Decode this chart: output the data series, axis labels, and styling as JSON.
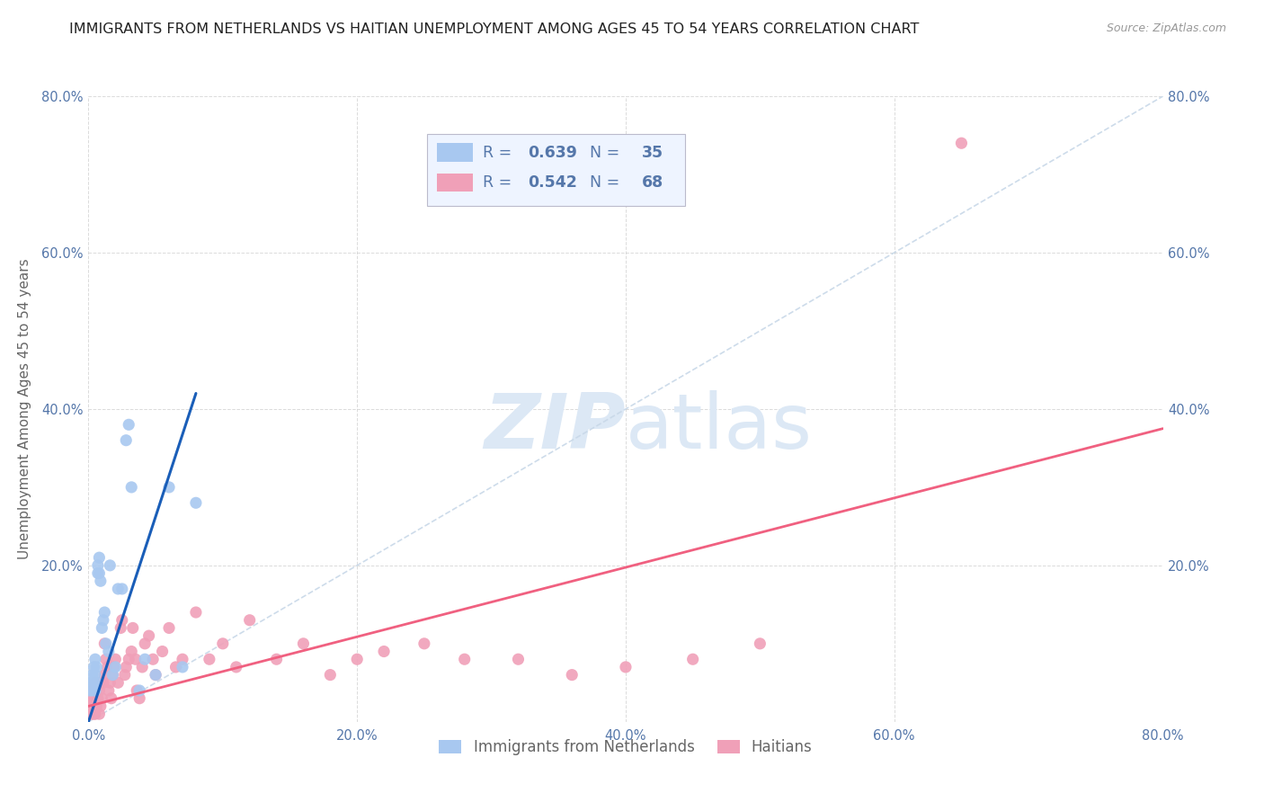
{
  "title": "IMMIGRANTS FROM NETHERLANDS VS HAITIAN UNEMPLOYMENT AMONG AGES 45 TO 54 YEARS CORRELATION CHART",
  "source": "Source: ZipAtlas.com",
  "ylabel": "Unemployment Among Ages 45 to 54 years",
  "xlim": [
    0.0,
    0.8
  ],
  "ylim": [
    0.0,
    0.8
  ],
  "netherlands_color": "#a8c8f0",
  "haitian_color": "#f0a0b8",
  "netherlands_line_color": "#1a5eb8",
  "haitian_line_color": "#f06080",
  "trend_line_dashed_color": "#c8d8e8",
  "watermark_color": "#dce8f5",
  "legend_box_color": "#eef4ff",
  "R_netherlands": 0.639,
  "N_netherlands": 35,
  "R_haitian": 0.542,
  "N_haitian": 68,
  "netherlands_x": [
    0.001,
    0.002,
    0.003,
    0.003,
    0.004,
    0.004,
    0.005,
    0.005,
    0.005,
    0.006,
    0.006,
    0.007,
    0.007,
    0.008,
    0.008,
    0.009,
    0.01,
    0.011,
    0.012,
    0.013,
    0.015,
    0.016,
    0.018,
    0.02,
    0.022,
    0.025,
    0.028,
    0.03,
    0.032,
    0.038,
    0.042,
    0.05,
    0.06,
    0.07,
    0.08
  ],
  "netherlands_y": [
    0.04,
    0.05,
    0.06,
    0.04,
    0.05,
    0.07,
    0.06,
    0.08,
    0.04,
    0.05,
    0.07,
    0.19,
    0.2,
    0.19,
    0.21,
    0.18,
    0.12,
    0.13,
    0.14,
    0.1,
    0.09,
    0.2,
    0.06,
    0.07,
    0.17,
    0.17,
    0.36,
    0.38,
    0.3,
    0.04,
    0.08,
    0.06,
    0.3,
    0.07,
    0.28
  ],
  "haitian_x": [
    0.001,
    0.002,
    0.002,
    0.003,
    0.003,
    0.004,
    0.004,
    0.005,
    0.005,
    0.005,
    0.006,
    0.006,
    0.007,
    0.007,
    0.008,
    0.008,
    0.009,
    0.01,
    0.01,
    0.011,
    0.012,
    0.012,
    0.013,
    0.014,
    0.015,
    0.016,
    0.017,
    0.018,
    0.019,
    0.02,
    0.022,
    0.024,
    0.025,
    0.027,
    0.028,
    0.03,
    0.032,
    0.033,
    0.035,
    0.036,
    0.038,
    0.04,
    0.042,
    0.045,
    0.048,
    0.05,
    0.055,
    0.06,
    0.065,
    0.07,
    0.08,
    0.09,
    0.1,
    0.11,
    0.12,
    0.14,
    0.16,
    0.18,
    0.2,
    0.22,
    0.25,
    0.28,
    0.32,
    0.36,
    0.4,
    0.45,
    0.5,
    0.65
  ],
  "haitian_y": [
    0.02,
    0.01,
    0.03,
    0.02,
    0.04,
    0.01,
    0.03,
    0.01,
    0.03,
    0.05,
    0.02,
    0.04,
    0.03,
    0.05,
    0.01,
    0.04,
    0.02,
    0.03,
    0.05,
    0.05,
    0.06,
    0.1,
    0.08,
    0.07,
    0.04,
    0.05,
    0.03,
    0.06,
    0.07,
    0.08,
    0.05,
    0.12,
    0.13,
    0.06,
    0.07,
    0.08,
    0.09,
    0.12,
    0.08,
    0.04,
    0.03,
    0.07,
    0.1,
    0.11,
    0.08,
    0.06,
    0.09,
    0.12,
    0.07,
    0.08,
    0.14,
    0.08,
    0.1,
    0.07,
    0.13,
    0.08,
    0.1,
    0.06,
    0.08,
    0.09,
    0.1,
    0.08,
    0.08,
    0.06,
    0.07,
    0.08,
    0.1,
    0.74
  ],
  "nl_regression": [
    0.0,
    0.08,
    0.0,
    0.42
  ],
  "haitian_regression": [
    0.0,
    0.8,
    0.02,
    0.375
  ],
  "background_color": "#ffffff",
  "grid_color": "#cccccc",
  "tick_color": "#5577aa",
  "axis_label_color": "#666666",
  "title_color": "#222222",
  "title_fontsize": 11.5,
  "axis_label_fontsize": 11,
  "tick_fontsize": 10.5
}
